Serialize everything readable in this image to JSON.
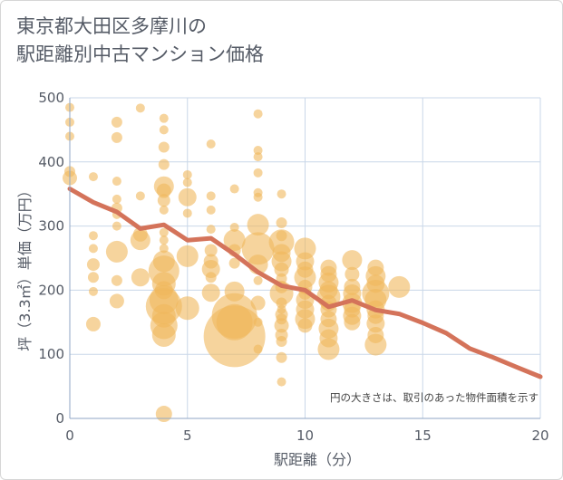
{
  "chart_data": {
    "type": "scatter",
    "title_line1": "東京都大田区多摩川の",
    "title_line2": "駅距離別中古マンション価格",
    "xlabel": "駅距離（分）",
    "ylabel": "坪（3.3㎡）単価（万円）",
    "annotation": "円の大きさは、取引のあった物件面積を示す",
    "xlim": [
      0,
      20
    ],
    "ylim": [
      0,
      500
    ],
    "xticks": [
      "0",
      "5",
      "10",
      "15",
      "20"
    ],
    "yticks": [
      "0",
      "100",
      "200",
      "300",
      "400",
      "500"
    ],
    "grid": true,
    "bubble_color": "#f0b75c",
    "line_color": "#d4735a",
    "bubbles": [
      [
        0,
        485,
        5
      ],
      [
        0,
        462,
        5
      ],
      [
        0,
        440,
        5
      ],
      [
        0,
        385,
        6
      ],
      [
        0,
        375,
        8
      ],
      [
        1,
        377,
        5
      ],
      [
        1,
        285,
        5
      ],
      [
        1,
        265,
        5
      ],
      [
        1,
        240,
        7
      ],
      [
        1,
        220,
        6
      ],
      [
        1,
        198,
        5
      ],
      [
        1,
        147,
        8
      ],
      [
        2,
        462,
        6
      ],
      [
        2,
        438,
        6
      ],
      [
        2,
        370,
        5
      ],
      [
        2,
        342,
        5
      ],
      [
        2,
        328,
        6
      ],
      [
        2,
        318,
        5
      ],
      [
        2,
        300,
        5
      ],
      [
        2,
        260,
        12
      ],
      [
        2,
        215,
        6
      ],
      [
        2,
        183,
        8
      ],
      [
        3,
        484,
        5
      ],
      [
        3,
        347,
        5
      ],
      [
        3,
        287,
        8
      ],
      [
        3,
        278,
        11
      ],
      [
        3,
        220,
        10
      ],
      [
        4,
        468,
        5
      ],
      [
        4,
        450,
        5
      ],
      [
        4,
        423,
        6
      ],
      [
        4,
        396,
        6
      ],
      [
        4,
        362,
        11
      ],
      [
        4,
        355,
        8
      ],
      [
        4,
        340,
        7
      ],
      [
        4,
        325,
        5
      ],
      [
        4,
        290,
        5
      ],
      [
        4,
        278,
        5
      ],
      [
        4,
        265,
        5
      ],
      [
        4,
        245,
        12
      ],
      [
        4,
        230,
        17
      ],
      [
        4,
        210,
        13
      ],
      [
        4,
        200,
        10
      ],
      [
        4,
        185,
        16
      ],
      [
        4,
        175,
        20
      ],
      [
        4,
        160,
        13
      ],
      [
        4,
        145,
        15
      ],
      [
        4,
        130,
        13
      ],
      [
        4,
        7,
        9
      ],
      [
        5,
        380,
        5
      ],
      [
        5,
        368,
        5
      ],
      [
        5,
        345,
        10
      ],
      [
        5,
        320,
        5
      ],
      [
        5,
        253,
        12
      ],
      [
        5,
        172,
        13
      ],
      [
        6,
        428,
        5
      ],
      [
        6,
        347,
        5
      ],
      [
        6,
        325,
        5
      ],
      [
        6,
        295,
        5
      ],
      [
        6,
        262,
        7
      ],
      [
        6,
        245,
        8
      ],
      [
        6,
        233,
        10
      ],
      [
        6,
        220,
        6
      ],
      [
        6,
        196,
        10
      ],
      [
        7,
        358,
        5
      ],
      [
        7,
        298,
        5
      ],
      [
        7,
        278,
        12
      ],
      [
        7,
        262,
        7
      ],
      [
        7,
        242,
        6
      ],
      [
        7,
        198,
        11
      ],
      [
        7,
        160,
        25
      ],
      [
        7,
        150,
        20
      ],
      [
        7,
        128,
        34
      ],
      [
        8,
        475,
        5
      ],
      [
        8,
        418,
        5
      ],
      [
        8,
        408,
        5
      ],
      [
        8,
        383,
        5
      ],
      [
        8,
        352,
        5
      ],
      [
        8,
        345,
        5
      ],
      [
        8,
        302,
        12
      ],
      [
        8,
        265,
        18
      ],
      [
        8,
        240,
        11
      ],
      [
        8,
        215,
        5
      ],
      [
        8,
        180,
        8
      ],
      [
        8,
        150,
        5
      ],
      [
        8,
        108,
        5
      ],
      [
        9,
        350,
        5
      ],
      [
        9,
        305,
        6
      ],
      [
        9,
        285,
        6
      ],
      [
        9,
        275,
        14
      ],
      [
        9,
        258,
        10
      ],
      [
        9,
        245,
        11
      ],
      [
        9,
        232,
        8
      ],
      [
        9,
        218,
        6
      ],
      [
        9,
        205,
        7
      ],
      [
        9,
        195,
        13
      ],
      [
        9,
        180,
        6
      ],
      [
        9,
        170,
        5
      ],
      [
        9,
        162,
        7
      ],
      [
        9,
        155,
        6
      ],
      [
        9,
        145,
        8
      ],
      [
        9,
        130,
        7
      ],
      [
        9,
        120,
        6
      ],
      [
        9,
        95,
        6
      ],
      [
        9,
        57,
        5
      ],
      [
        10,
        265,
        12
      ],
      [
        10,
        245,
        10
      ],
      [
        10,
        232,
        9
      ],
      [
        10,
        220,
        12
      ],
      [
        10,
        205,
        8
      ],
      [
        10,
        195,
        7
      ],
      [
        10,
        185,
        10
      ],
      [
        10,
        170,
        10
      ],
      [
        10,
        155,
        11
      ],
      [
        10,
        145,
        8
      ],
      [
        11,
        235,
        9
      ],
      [
        11,
        225,
        9
      ],
      [
        11,
        212,
        11
      ],
      [
        11,
        200,
        10
      ],
      [
        11,
        190,
        13
      ],
      [
        11,
        180,
        9
      ],
      [
        11,
        170,
        9
      ],
      [
        11,
        155,
        9
      ],
      [
        11,
        140,
        11
      ],
      [
        11,
        125,
        10
      ],
      [
        11,
        108,
        12
      ],
      [
        12,
        247,
        11
      ],
      [
        12,
        225,
        8
      ],
      [
        12,
        205,
        9
      ],
      [
        12,
        195,
        10
      ],
      [
        12,
        180,
        11
      ],
      [
        12,
        170,
        9
      ],
      [
        12,
        160,
        10
      ],
      [
        12,
        150,
        9
      ],
      [
        13,
        235,
        9
      ],
      [
        13,
        222,
        11
      ],
      [
        13,
        210,
        10
      ],
      [
        13,
        195,
        15
      ],
      [
        13,
        185,
        12
      ],
      [
        13,
        170,
        10
      ],
      [
        13,
        160,
        9
      ],
      [
        13,
        148,
        10
      ],
      [
        13,
        130,
        9
      ],
      [
        13,
        115,
        12
      ],
      [
        14,
        205,
        12
      ]
    ],
    "line": [
      [
        0,
        358
      ],
      [
        1,
        337
      ],
      [
        2,
        322
      ],
      [
        3,
        296
      ],
      [
        4,
        302
      ],
      [
        5,
        278
      ],
      [
        6,
        281
      ],
      [
        7,
        256
      ],
      [
        8,
        228
      ],
      [
        9,
        207
      ],
      [
        10,
        200
      ],
      [
        11,
        174
      ],
      [
        12,
        184
      ],
      [
        13,
        169
      ],
      [
        14,
        163
      ],
      [
        15,
        149
      ],
      [
        16,
        133
      ],
      [
        17,
        109
      ],
      [
        18,
        95
      ],
      [
        19,
        80
      ],
      [
        20,
        65
      ]
    ]
  }
}
